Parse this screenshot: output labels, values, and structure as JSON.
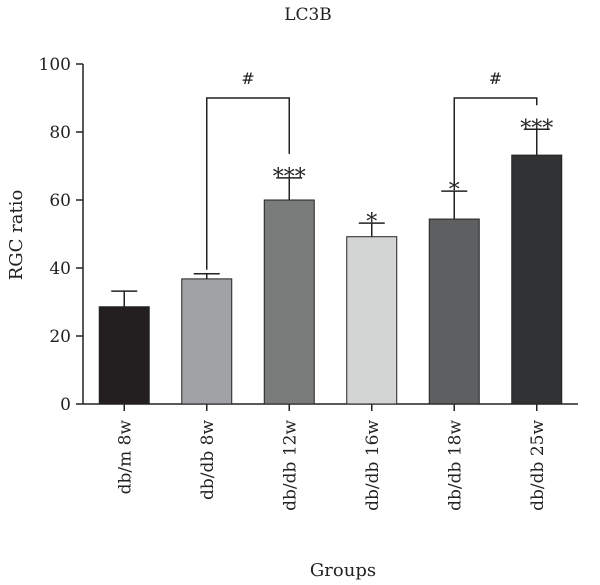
{
  "chart_data": {
    "type": "bar",
    "title": "LC3B",
    "xlabel": "Groups",
    "ylabel": "RGC ratio",
    "ylim": [
      0,
      100
    ],
    "yticks": [
      0,
      20,
      40,
      60,
      80,
      100
    ],
    "categories": [
      "db/m 8w",
      "db/db 8w",
      "db/db 12w",
      "db/db 16w",
      "db/db 18w",
      "db/db 25w"
    ],
    "values": [
      28.6,
      36.8,
      60.0,
      49.2,
      54.4,
      73.2
    ],
    "errors": [
      4.6,
      1.5,
      6.5,
      4.0,
      8.2,
      7.6
    ],
    "significance": [
      "",
      "",
      "***",
      "*",
      "*",
      "***"
    ],
    "brackets": [
      {
        "from": 1,
        "to": 2,
        "label": "#",
        "y": 90
      },
      {
        "from": 4,
        "to": 5,
        "label": "#",
        "y": 90
      }
    ],
    "bar_colors": [
      "#231f20",
      "#a0a2a5",
      "#7a7c7c",
      "#d3d4d4",
      "#5e5f61",
      "#313233"
    ],
    "grid": false
  }
}
